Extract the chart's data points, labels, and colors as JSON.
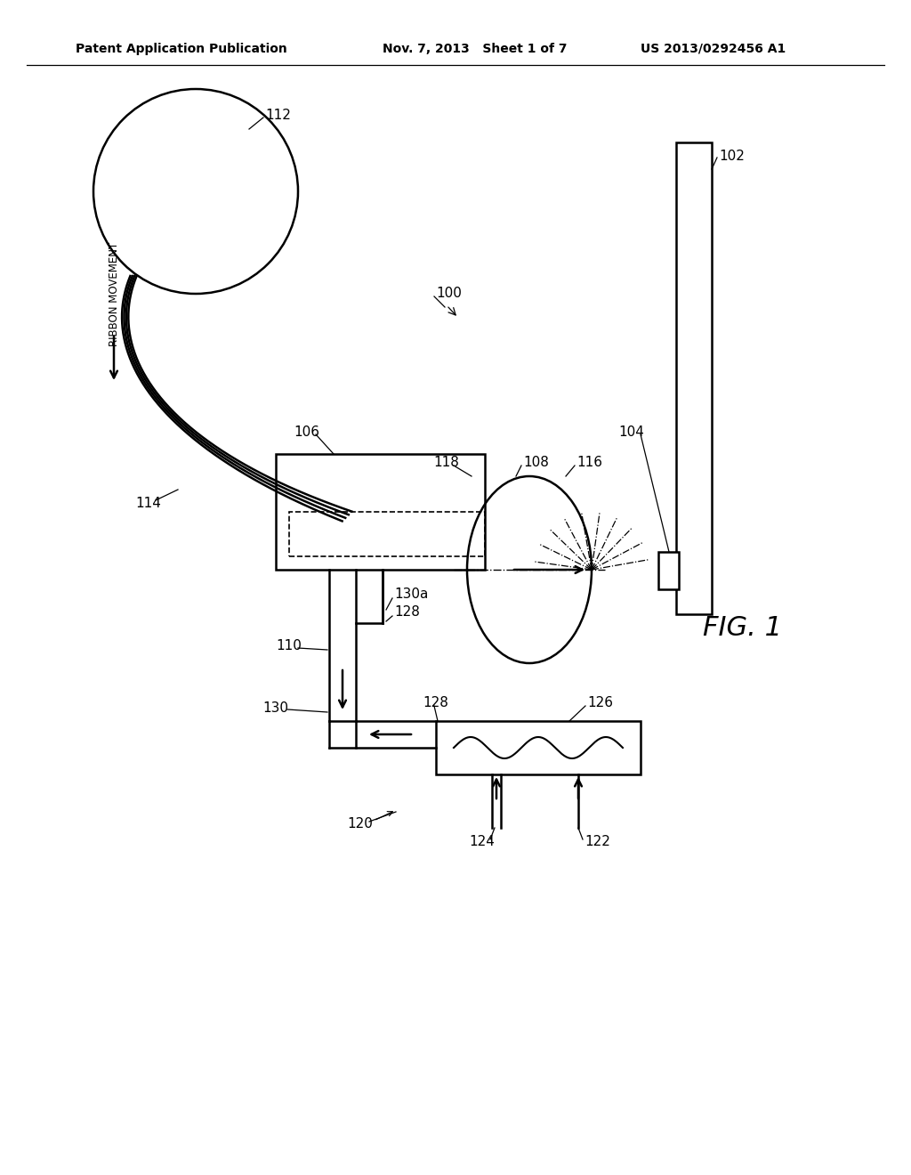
{
  "header_left": "Patent Application Publication",
  "header_mid": "Nov. 7, 2013   Sheet 1 of 7",
  "header_right": "US 2013/0292456 A1",
  "fig_label": "FIG. 1",
  "bg": "#ffffff",
  "lw": 1.8,
  "fs": 11,
  "fs_hdr": 10
}
